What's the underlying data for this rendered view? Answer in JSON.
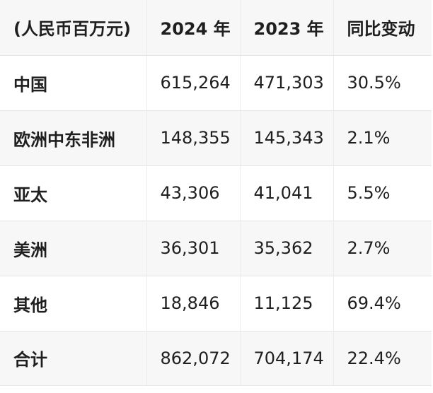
{
  "table": {
    "headers": [
      "(人民币百万元)",
      "2024 年",
      "2023 年",
      "同比变动"
    ],
    "rows": [
      {
        "region": "中国",
        "y2024": "615,264",
        "y2023": "471,303",
        "change": "30.5%"
      },
      {
        "region": "欧洲中东非洲",
        "y2024": "148,355",
        "y2023": "145,343",
        "change": "2.1%"
      },
      {
        "region": "亚太",
        "y2024": "43,306",
        "y2023": "41,041",
        "change": "5.5%"
      },
      {
        "region": "美洲",
        "y2024": "36,301",
        "y2023": "35,362",
        "change": "2.7%"
      },
      {
        "region": "其他",
        "y2024": "18,846",
        "y2023": "11,125",
        "change": "69.4%"
      },
      {
        "region": "合计",
        "y2024": "862,072",
        "y2023": "704,174",
        "change": "22.4%"
      }
    ]
  }
}
